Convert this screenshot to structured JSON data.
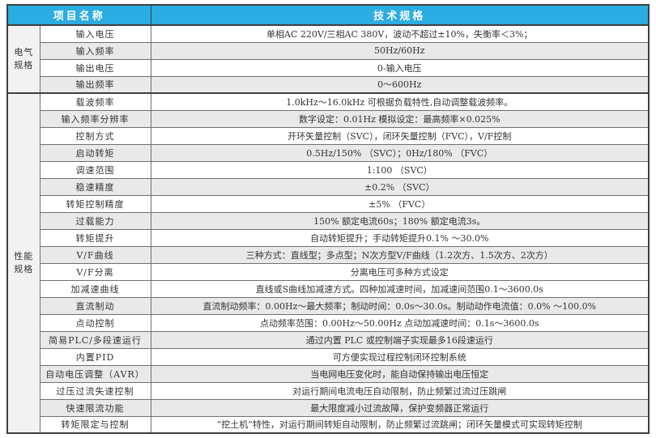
{
  "colors": {
    "header_bg": "#2bace2",
    "header_text": "#ffffff",
    "row_shade": "#e9e9e9",
    "border_dark": "#3f3f3f",
    "text": "#333333"
  },
  "table": {
    "header": {
      "item_col": "项目名称",
      "spec_col": "技术规格"
    },
    "sections": [
      {
        "group": "电气规格",
        "group_lines": [
          "电气",
          "规格"
        ],
        "rows": [
          {
            "name": "输入电压",
            "value": "单相AC 220V/三相AC 380V，波动不超过±10%，失衡率＜3%；",
            "shaded": false
          },
          {
            "name": "输入频率",
            "value": "50Hz/60Hz",
            "shaded": true
          },
          {
            "name": "输出电压",
            "value": "0-输入电压",
            "shaded": false
          },
          {
            "name": "输出频率",
            "value": "0～600Hz",
            "shaded": true
          }
        ]
      },
      {
        "group": "性能规格",
        "group_lines": [
          "性能",
          "规格"
        ],
        "rows": [
          {
            "name": "载波频率",
            "value": "1.0kHz～16.0kHz 可根据负载特性,自动调整载波频率。",
            "shaded": false
          },
          {
            "name": "输入频率分辨率",
            "value": "数字设定：0.01Hz 模拟设定：最高频率×0.025%",
            "shaded": true
          },
          {
            "name": "控制方式",
            "value": "开环矢量控制（SVC），闭环矢量控制（FVC），V/F控制",
            "shaded": false
          },
          {
            "name": "启动转矩",
            "value": "0.5Hz/150% （SVC）；0Hz/180% （FVC）",
            "shaded": true
          },
          {
            "name": "调速范围",
            "value": "1:100 （SVC）",
            "shaded": false
          },
          {
            "name": "稳速精度",
            "value": "±0.2% （SVC）",
            "shaded": true
          },
          {
            "name": "转矩控制精度",
            "value": "±5% （FVC）",
            "shaded": false
          },
          {
            "name": "过载能力",
            "value": "150% 额定电流60s；180% 额定电流3s。",
            "shaded": true
          },
          {
            "name": "转矩提升",
            "value": "自动转矩提升；手动转矩提升0.1% ～30.0%",
            "shaded": false
          },
          {
            "name": "V/F曲线",
            "value": "三种方式：直线型；多点型；N次方型V/F曲线（1.2次方、1.5次方、2次方）",
            "shaded": true
          },
          {
            "name": "V/F分离",
            "value": "分离电压可多种方式设定",
            "shaded": false
          },
          {
            "name": "加减速曲线",
            "value": "直线或S曲线加减速方式。四种加减速时间，加减速间范围0.1～3600.0s",
            "shaded": false
          },
          {
            "name": "直流制动",
            "value": "直流制动频率：0.00Hz～最大频率；制动时间：0.0s～30.0s。制动动作电流值：0.0% ～100.0%",
            "shaded": true
          },
          {
            "name": "点动控制",
            "value": "点动频率范围：0.00Hz～50.00Hz 点动加减速时间：0.1s～3600.0s",
            "shaded": false
          },
          {
            "name": "简易PLC/多段速运行",
            "value": "通过内置 PLC 或控制端子实现最多16段速运行",
            "shaded": true
          },
          {
            "name": "内置PID",
            "value": "可方便实现过程控制闭环控制系统",
            "shaded": false
          },
          {
            "name": "自动电压调整（AVR）",
            "value": "当电网电压变化时，能自动保持输出电压恒定",
            "shaded": true
          },
          {
            "name": "过压过流失速控制",
            "value": "对运行期间电流电压自动限制，防止频繁过流过压跳闸",
            "shaded": false
          },
          {
            "name": "快速限流功能",
            "value": "最大限度减小过流故障，保护变频器正常运行",
            "shaded": true
          },
          {
            "name": "转矩限定与控制",
            "value": "“挖土机”特性，对运行期间转矩自动限制，防止频繁过流跳闸；闭环矢量模式可实现转矩控制",
            "shaded": false
          }
        ]
      }
    ]
  }
}
